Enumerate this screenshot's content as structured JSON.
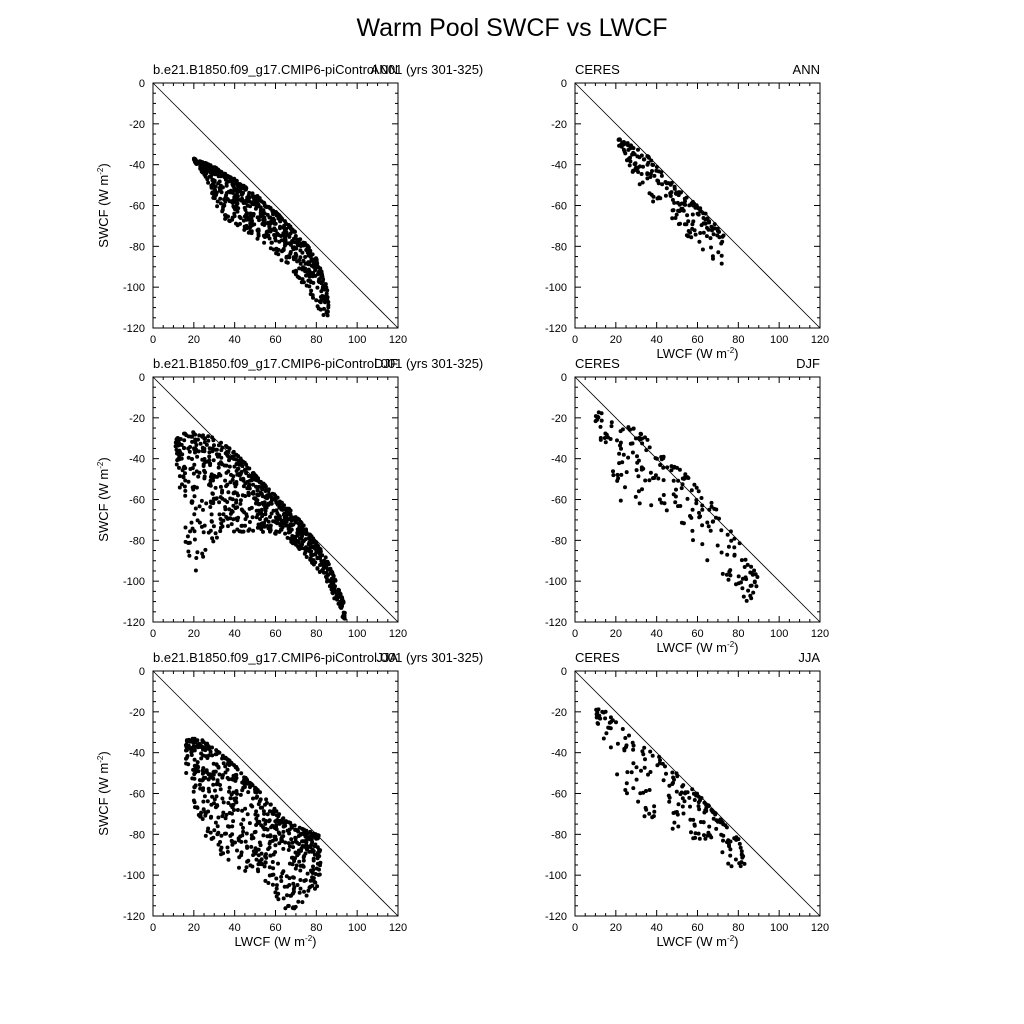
{
  "title": "Warm Pool SWCF vs LWCF",
  "axes": {
    "xlabel_main": "LWCF (W m",
    "ylabel_main": "SWCF (W m",
    "unit_exponent": "-2",
    "unit_close": ")",
    "xticks": [
      "0",
      "20",
      "40",
      "60",
      "80",
      "100",
      "120"
    ],
    "yticks": [
      "0",
      "-20",
      "-40",
      "-60",
      "-80",
      "-100",
      "-120"
    ]
  },
  "chart_data": [
    {
      "type": "scatter",
      "left_label": "b.e21.B1850.f09_g17.CMIP6-piControl.001 (yrs 301-325)",
      "right_label": "ANN",
      "xlim": [
        0,
        120
      ],
      "ylim": [
        -120,
        0
      ],
      "reference_line": {
        "x": [
          0,
          120
        ],
        "y": [
          0,
          -120
        ]
      },
      "shape": {
        "x": [
          20,
          22,
          25,
          28,
          30,
          33,
          36,
          40,
          44,
          48,
          52,
          56,
          60,
          64,
          68,
          72,
          76,
          80,
          84,
          86
        ],
        "upper": [
          -37,
          -38,
          -39,
          -40,
          -41,
          -43,
          -45,
          -47,
          -50,
          -53,
          -56,
          -60,
          -63,
          -67,
          -71,
          -76,
          -80,
          -86,
          -96,
          -104
        ],
        "lower": [
          -38,
          -41,
          -45,
          -51,
          -58,
          -64,
          -68,
          -70,
          -72,
          -74,
          -77,
          -80,
          -84,
          -88,
          -92,
          -97,
          -103,
          -109,
          -115,
          -118
        ]
      },
      "n": 700,
      "seed": 11
    },
    {
      "type": "scatter",
      "left_label": "CERES",
      "right_label": "ANN",
      "xlim": [
        0,
        120
      ],
      "ylim": [
        -120,
        0
      ],
      "reference_line": {
        "x": [
          0,
          120
        ],
        "y": [
          0,
          -120
        ]
      },
      "shape": {
        "x": [
          21,
          25,
          30,
          35,
          40,
          45,
          50,
          55,
          60,
          65,
          70,
          73
        ],
        "upper": [
          -27,
          -29,
          -31,
          -35,
          -41,
          -46,
          -52,
          -56,
          -60,
          -65,
          -71,
          -75
        ],
        "lower": [
          -31,
          -37,
          -48,
          -55,
          -60,
          -65,
          -70,
          -75,
          -80,
          -86,
          -89,
          -90
        ]
      },
      "n": 200,
      "seed": 23
    },
    {
      "type": "scatter",
      "left_label": "b.e21.B1850.f09_g17.CMIP6-piControl.001 (yrs 301-325)",
      "right_label": "DJF",
      "xlim": [
        0,
        120
      ],
      "ylim": [
        -120,
        0
      ],
      "reference_line": {
        "x": [
          0,
          120
        ],
        "y": [
          0,
          -120
        ]
      },
      "shape": {
        "x": [
          11,
          14,
          18,
          22,
          26,
          30,
          35,
          40,
          45,
          50,
          55,
          60,
          65,
          70,
          75,
          80,
          85,
          90,
          94
        ],
        "upper": [
          -31,
          -28,
          -27,
          -27,
          -28,
          -30,
          -33,
          -37,
          -42,
          -48,
          -53,
          -58,
          -63,
          -68,
          -74,
          -81,
          -89,
          -101,
          -112
        ],
        "lower": [
          -36,
          -70,
          -92,
          -96,
          -88,
          -80,
          -77,
          -76,
          -76,
          -76,
          -76,
          -77,
          -79,
          -83,
          -88,
          -94,
          -102,
          -112,
          -120
        ]
      },
      "n": 800,
      "seed": 37
    },
    {
      "type": "scatter",
      "left_label": "CERES",
      "right_label": "DJF",
      "xlim": [
        0,
        120
      ],
      "ylim": [
        -120,
        0
      ],
      "reference_line": {
        "x": [
          0,
          120
        ],
        "y": [
          0,
          -120
        ]
      },
      "shape": {
        "x": [
          10,
          15,
          20,
          25,
          30,
          35,
          40,
          45,
          50,
          55,
          60,
          65,
          70,
          75,
          80,
          85,
          90
        ],
        "upper": [
          -17,
          -18,
          -20,
          -23,
          -26,
          -30,
          -36,
          -40,
          -44,
          -48,
          -54,
          -58,
          -66,
          -73,
          -80,
          -90,
          -98
        ],
        "lower": [
          -22,
          -40,
          -60,
          -63,
          -64,
          -65,
          -65,
          -66,
          -68,
          -76,
          -86,
          -90,
          -96,
          -103,
          -110,
          -112,
          -112
        ]
      },
      "n": 200,
      "seed": 41
    },
    {
      "type": "scatter",
      "left_label": "b.e21.B1850.f09_g17.CMIP6-piControl.001 (yrs 301-325)",
      "right_label": "JJA",
      "xlim": [
        0,
        120
      ],
      "ylim": [
        -120,
        0
      ],
      "reference_line": {
        "x": [
          0,
          120
        ],
        "y": [
          0,
          -120
        ]
      },
      "shape": {
        "x": [
          16,
          20,
          25,
          30,
          35,
          40,
          45,
          50,
          55,
          60,
          65,
          70,
          75,
          80,
          82
        ],
        "upper": [
          -34,
          -33,
          -34,
          -38,
          -42,
          -46,
          -52,
          -57,
          -62,
          -68,
          -73,
          -76,
          -78,
          -80,
          -80
        ],
        "lower": [
          -50,
          -65,
          -80,
          -90,
          -95,
          -96,
          -98,
          -100,
          -104,
          -110,
          -118,
          -117,
          -112,
          -106,
          -104
        ]
      },
      "n": 650,
      "seed": 53
    },
    {
      "type": "scatter",
      "left_label": "CERES",
      "right_label": "JJA",
      "xlim": [
        0,
        120
      ],
      "ylim": [
        -120,
        0
      ],
      "reference_line": {
        "x": [
          0,
          120
        ],
        "y": [
          0,
          -120
        ]
      },
      "shape": {
        "x": [
          10,
          15,
          20,
          25,
          30,
          35,
          40,
          45,
          50,
          55,
          60,
          65,
          70,
          75,
          80,
          83
        ],
        "upper": [
          -18,
          -20,
          -25,
          -30,
          -35,
          -38,
          -40,
          -45,
          -50,
          -55,
          -60,
          -65,
          -71,
          -77,
          -82,
          -93
        ],
        "lower": [
          -24,
          -35,
          -50,
          -60,
          -68,
          -74,
          -80,
          -82,
          -82,
          -82,
          -83,
          -85,
          -90,
          -96,
          -96,
          -95
        ]
      },
      "n": 200,
      "seed": 67
    }
  ]
}
